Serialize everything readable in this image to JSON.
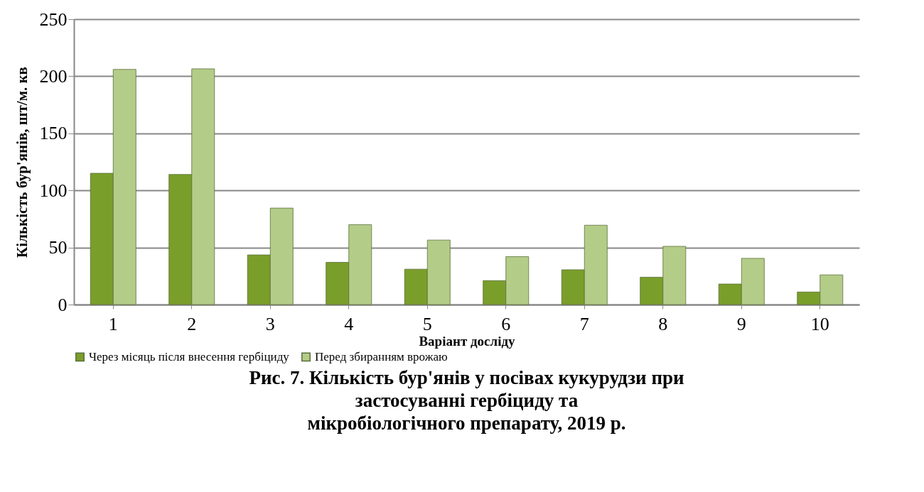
{
  "chart_data": {
    "type": "bar",
    "title": "Рис. 7. Кількість бур'янів у посівах кукурудзи при\nзастосуванні гербіциду та\nмікробіологічного препарату, 2019 р.",
    "xlabel": "Варіант досліду",
    "ylabel": "Кількість бур'янів, шт/м. кв",
    "categories": [
      "1",
      "2",
      "3",
      "4",
      "5",
      "6",
      "7",
      "8",
      "9",
      "10"
    ],
    "series": [
      {
        "name": "Через місяць після внесення гербіциду",
        "color": "#7a9e2a",
        "values": [
          115,
          114,
          43.5,
          37,
          31,
          21,
          30.5,
          24,
          18,
          11
        ]
      },
      {
        "name": "Перед збиранням врожаю",
        "color": "#b3cc88",
        "values": [
          206,
          206.5,
          84.5,
          70,
          56.5,
          42,
          69.5,
          51,
          40.5,
          26
        ]
      }
    ],
    "ylim": [
      0,
      250
    ],
    "yticks": [
      0,
      50,
      100,
      150,
      200,
      250
    ],
    "grid": "y",
    "legend": "bottom"
  }
}
